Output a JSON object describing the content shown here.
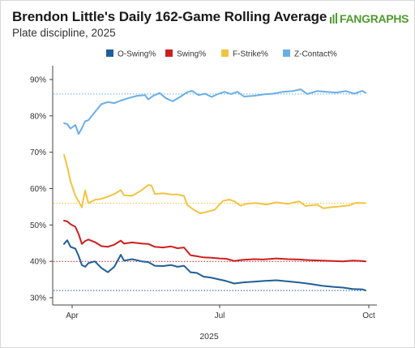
{
  "header": {
    "title": "Brendon Little's Daily 162-Game Rolling Average",
    "subtitle": "Plate discipline, 2025",
    "logo_text": "FANGRAPHS"
  },
  "colors": {
    "o_swing": "#1f5f97",
    "swing": "#cc1f1f",
    "f_strike": "#f3c342",
    "z_contact": "#6aaee8",
    "axis": "#444444",
    "grid": "#e6e6e6"
  },
  "chart_data": {
    "type": "line",
    "title": "Brendon Little's Daily 162-Game Rolling Average",
    "subtitle": "Plate discipline, 2025",
    "xlabel": "2025",
    "ylabel": "",
    "x_ticks": [
      "Apr",
      "Jul",
      "Oct"
    ],
    "x_tick_dates": [
      "2025-04-01",
      "2025-07-01",
      "2025-10-01"
    ],
    "xlim": [
      "2025-03-20",
      "2025-10-06"
    ],
    "y_ticks": [
      "30%",
      "40%",
      "50%",
      "60%",
      "70%",
      "80%",
      "90%"
    ],
    "y_tick_values": [
      30,
      40,
      50,
      60,
      70,
      80,
      90
    ],
    "ylim": [
      28,
      92
    ],
    "legend_position": "top",
    "grid": false,
    "series": [
      {
        "name": "O-Swing%",
        "average": 32,
        "points": [
          [
            "2025-03-27",
            44.8
          ],
          [
            "2025-03-29",
            45.8
          ],
          [
            "2025-03-31",
            44.0
          ],
          [
            "2025-04-03",
            43.5
          ],
          [
            "2025-04-05",
            41.5
          ],
          [
            "2025-04-07",
            39.0
          ],
          [
            "2025-04-09",
            38.5
          ],
          [
            "2025-04-11",
            39.5
          ],
          [
            "2025-04-15",
            40.0
          ],
          [
            "2025-04-19",
            38.2
          ],
          [
            "2025-04-23",
            37.0
          ],
          [
            "2025-04-27",
            38.5
          ],
          [
            "2025-05-01",
            41.8
          ],
          [
            "2025-05-03",
            40.2
          ],
          [
            "2025-05-08",
            40.6
          ],
          [
            "2025-05-14",
            40.0
          ],
          [
            "2025-05-18",
            39.8
          ],
          [
            "2025-05-22",
            38.8
          ],
          [
            "2025-05-27",
            38.7
          ],
          [
            "2025-06-01",
            39.0
          ],
          [
            "2025-06-05",
            38.5
          ],
          [
            "2025-06-09",
            38.8
          ],
          [
            "2025-06-13",
            37.0
          ],
          [
            "2025-06-17",
            36.8
          ],
          [
            "2025-06-21",
            35.8
          ],
          [
            "2025-06-26",
            35.5
          ],
          [
            "2025-07-01",
            35.0
          ],
          [
            "2025-07-05",
            34.6
          ],
          [
            "2025-07-10",
            33.9
          ],
          [
            "2025-07-15",
            34.2
          ],
          [
            "2025-07-22",
            34.4
          ],
          [
            "2025-07-28",
            34.6
          ],
          [
            "2025-08-05",
            34.8
          ],
          [
            "2025-08-12",
            34.5
          ],
          [
            "2025-08-19",
            34.2
          ],
          [
            "2025-08-26",
            33.8
          ],
          [
            "2025-09-02",
            33.3
          ],
          [
            "2025-09-09",
            33.0
          ],
          [
            "2025-09-15",
            32.8
          ],
          [
            "2025-09-21",
            32.4
          ],
          [
            "2025-09-27",
            32.3
          ],
          [
            "2025-09-29",
            32.0
          ]
        ]
      },
      {
        "name": "Swing%",
        "average": 40,
        "points": [
          [
            "2025-03-27",
            51.2
          ],
          [
            "2025-03-29",
            51.0
          ],
          [
            "2025-03-31",
            50.2
          ],
          [
            "2025-04-03",
            49.5
          ],
          [
            "2025-04-05",
            47.5
          ],
          [
            "2025-04-07",
            44.8
          ],
          [
            "2025-04-09",
            45.6
          ],
          [
            "2025-04-11",
            46.0
          ],
          [
            "2025-04-15",
            45.3
          ],
          [
            "2025-04-19",
            44.2
          ],
          [
            "2025-04-23",
            44.0
          ],
          [
            "2025-04-27",
            44.6
          ],
          [
            "2025-05-01",
            45.7
          ],
          [
            "2025-05-03",
            44.9
          ],
          [
            "2025-05-08",
            45.2
          ],
          [
            "2025-05-14",
            44.9
          ],
          [
            "2025-05-18",
            44.8
          ],
          [
            "2025-05-22",
            44.0
          ],
          [
            "2025-05-27",
            43.8
          ],
          [
            "2025-06-01",
            44.1
          ],
          [
            "2025-06-05",
            43.6
          ],
          [
            "2025-06-09",
            43.8
          ],
          [
            "2025-06-13",
            41.7
          ],
          [
            "2025-06-17",
            41.4
          ],
          [
            "2025-06-21",
            41.1
          ],
          [
            "2025-06-26",
            41.0
          ],
          [
            "2025-07-01",
            40.8
          ],
          [
            "2025-07-05",
            40.7
          ],
          [
            "2025-07-10",
            40.1
          ],
          [
            "2025-07-15",
            40.4
          ],
          [
            "2025-07-22",
            40.6
          ],
          [
            "2025-07-28",
            40.5
          ],
          [
            "2025-08-05",
            40.8
          ],
          [
            "2025-08-12",
            40.6
          ],
          [
            "2025-08-19",
            40.5
          ],
          [
            "2025-08-26",
            40.3
          ],
          [
            "2025-09-02",
            40.2
          ],
          [
            "2025-09-09",
            40.1
          ],
          [
            "2025-09-15",
            40.0
          ],
          [
            "2025-09-21",
            40.2
          ],
          [
            "2025-09-27",
            40.1
          ],
          [
            "2025-09-29",
            40.0
          ]
        ]
      },
      {
        "name": "F-Strike%",
        "average": 56,
        "points": [
          [
            "2025-03-27",
            69.3
          ],
          [
            "2025-03-29",
            66.0
          ],
          [
            "2025-03-31",
            62.0
          ],
          [
            "2025-04-03",
            58.0
          ],
          [
            "2025-04-05",
            56.5
          ],
          [
            "2025-04-07",
            54.8
          ],
          [
            "2025-04-09",
            59.5
          ],
          [
            "2025-04-11",
            56.0
          ],
          [
            "2025-04-15",
            56.9
          ],
          [
            "2025-04-19",
            57.2
          ],
          [
            "2025-04-23",
            57.8
          ],
          [
            "2025-04-27",
            58.5
          ],
          [
            "2025-05-01",
            59.6
          ],
          [
            "2025-05-03",
            58.2
          ],
          [
            "2025-05-08",
            58.0
          ],
          [
            "2025-05-14",
            59.6
          ],
          [
            "2025-05-18",
            61.0
          ],
          [
            "2025-05-20",
            60.8
          ],
          [
            "2025-05-22",
            58.5
          ],
          [
            "2025-05-27",
            58.7
          ],
          [
            "2025-06-01",
            58.4
          ],
          [
            "2025-06-05",
            58.4
          ],
          [
            "2025-06-09",
            58.0
          ],
          [
            "2025-06-11",
            55.5
          ],
          [
            "2025-06-15",
            54.2
          ],
          [
            "2025-06-19",
            53.2
          ],
          [
            "2025-06-23",
            53.6
          ],
          [
            "2025-06-28",
            54.2
          ],
          [
            "2025-07-03",
            56.6
          ],
          [
            "2025-07-07",
            57.0
          ],
          [
            "2025-07-10",
            56.5
          ],
          [
            "2025-07-14",
            55.3
          ],
          [
            "2025-07-18",
            55.9
          ],
          [
            "2025-07-24",
            56.0
          ],
          [
            "2025-07-30",
            55.6
          ],
          [
            "2025-08-05",
            56.2
          ],
          [
            "2025-08-12",
            55.8
          ],
          [
            "2025-08-19",
            56.5
          ],
          [
            "2025-08-23",
            55.2
          ],
          [
            "2025-08-30",
            55.6
          ],
          [
            "2025-09-03",
            54.6
          ],
          [
            "2025-09-08",
            54.9
          ],
          [
            "2025-09-13",
            55.1
          ],
          [
            "2025-09-19",
            55.4
          ],
          [
            "2025-09-23",
            56.1
          ],
          [
            "2025-09-27",
            56.0
          ],
          [
            "2025-09-29",
            56.0
          ]
        ]
      },
      {
        "name": "Z-Contact%",
        "average": 86,
        "points": [
          [
            "2025-03-27",
            78.0
          ],
          [
            "2025-03-29",
            77.7
          ],
          [
            "2025-03-31",
            76.5
          ],
          [
            "2025-04-03",
            77.5
          ],
          [
            "2025-04-05",
            75.0
          ],
          [
            "2025-04-07",
            76.6
          ],
          [
            "2025-04-09",
            78.5
          ],
          [
            "2025-04-11",
            78.8
          ],
          [
            "2025-04-15",
            81.0
          ],
          [
            "2025-04-19",
            83.2
          ],
          [
            "2025-04-23",
            83.8
          ],
          [
            "2025-04-27",
            83.5
          ],
          [
            "2025-05-01",
            84.2
          ],
          [
            "2025-05-06",
            84.9
          ],
          [
            "2025-05-11",
            85.5
          ],
          [
            "2025-05-16",
            85.7
          ],
          [
            "2025-05-18",
            84.5
          ],
          [
            "2025-05-21",
            85.5
          ],
          [
            "2025-05-25",
            86.3
          ],
          [
            "2025-05-29",
            84.8
          ],
          [
            "2025-06-02",
            84.0
          ],
          [
            "2025-06-07",
            85.3
          ],
          [
            "2025-06-11",
            86.5
          ],
          [
            "2025-06-14",
            86.9
          ],
          [
            "2025-06-18",
            85.7
          ],
          [
            "2025-06-22",
            86.1
          ],
          [
            "2025-06-26",
            85.2
          ],
          [
            "2025-06-30",
            86.0
          ],
          [
            "2025-07-04",
            86.6
          ],
          [
            "2025-07-08",
            86.0
          ],
          [
            "2025-07-12",
            86.6
          ],
          [
            "2025-07-16",
            85.3
          ],
          [
            "2025-07-22",
            85.5
          ],
          [
            "2025-07-28",
            85.9
          ],
          [
            "2025-08-03",
            86.1
          ],
          [
            "2025-08-09",
            86.6
          ],
          [
            "2025-08-15",
            86.8
          ],
          [
            "2025-08-20",
            87.3
          ],
          [
            "2025-08-24",
            86.0
          ],
          [
            "2025-08-30",
            86.8
          ],
          [
            "2025-09-05",
            86.6
          ],
          [
            "2025-09-11",
            86.4
          ],
          [
            "2025-09-17",
            86.8
          ],
          [
            "2025-09-22",
            86.1
          ],
          [
            "2025-09-27",
            86.9
          ],
          [
            "2025-09-29",
            86.3
          ]
        ]
      }
    ]
  }
}
